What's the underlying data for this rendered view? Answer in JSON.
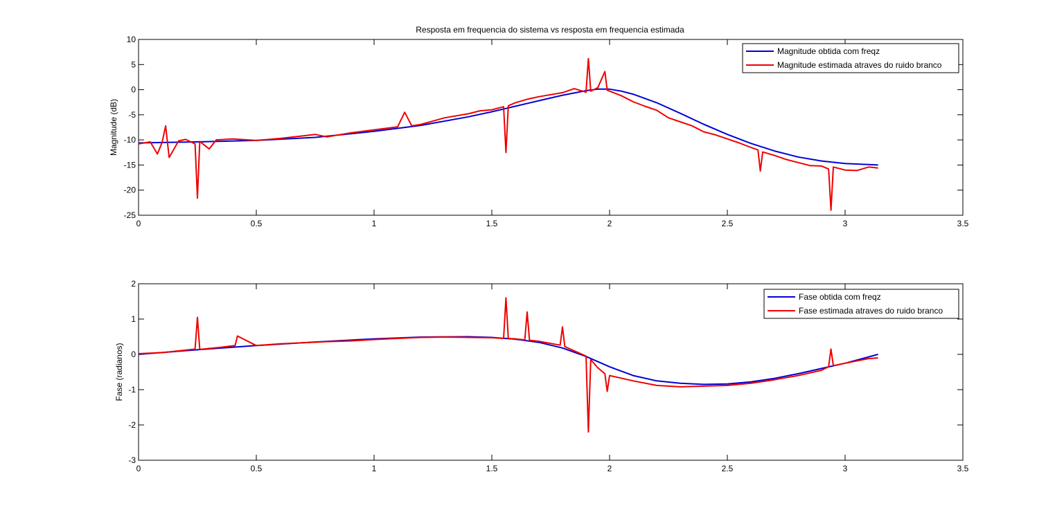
{
  "figure": {
    "title": "Resposta em frequencia do sistema vs resposta em frequencia estimada"
  },
  "chart_data": [
    {
      "type": "line",
      "ylabel": "Magnitude (dB)",
      "xlabel": "",
      "xlim": [
        0,
        3.5
      ],
      "ylim": [
        -25,
        10
      ],
      "xticks": [
        0,
        0.5,
        1,
        1.5,
        2,
        2.5,
        3,
        3.5
      ],
      "yticks": [
        -25,
        -20,
        -15,
        -10,
        -5,
        0,
        5,
        10
      ],
      "xtick_labels": [
        "0",
        "0.5",
        "1",
        "1.5",
        "2",
        "2.5",
        "3",
        "3.5"
      ],
      "ytick_labels": [
        "-25",
        "-20",
        "-15",
        "-10",
        "-5",
        "0",
        "5",
        "10"
      ],
      "legend_position": "top-right",
      "series": [
        {
          "name": "Magnitude obtida com freqz",
          "color": "#0000d6",
          "x": [
            0,
            0.25,
            0.5,
            0.75,
            1.0,
            1.2,
            1.4,
            1.5,
            1.6,
            1.7,
            1.8,
            1.9,
            1.95,
            2.0,
            2.05,
            2.1,
            2.2,
            2.3,
            2.4,
            2.5,
            2.6,
            2.7,
            2.8,
            2.9,
            3.0,
            3.14
          ],
          "values": [
            -10.6,
            -10.4,
            -10.1,
            -9.5,
            -8.3,
            -7.1,
            -5.4,
            -4.4,
            -3.3,
            -2.2,
            -1.1,
            -0.2,
            0.1,
            0.1,
            -0.3,
            -0.9,
            -2.6,
            -4.7,
            -6.9,
            -8.9,
            -10.7,
            -12.2,
            -13.4,
            -14.2,
            -14.7,
            -15.0
          ]
        },
        {
          "name": "Magnitude estimada atraves do ruido branco",
          "color": "#ee0000",
          "x": [
            0,
            0.05,
            0.08,
            0.1,
            0.115,
            0.13,
            0.17,
            0.2,
            0.24,
            0.25,
            0.26,
            0.3,
            0.33,
            0.4,
            0.5,
            0.6,
            0.7,
            0.75,
            0.8,
            0.9,
            1.0,
            1.1,
            1.13,
            1.16,
            1.2,
            1.3,
            1.4,
            1.45,
            1.5,
            1.55,
            1.56,
            1.57,
            1.6,
            1.65,
            1.7,
            1.8,
            1.85,
            1.9,
            1.91,
            1.92,
            1.95,
            1.98,
            1.99,
            2.0,
            2.05,
            2.1,
            2.15,
            2.2,
            2.25,
            2.3,
            2.35,
            2.4,
            2.45,
            2.5,
            2.55,
            2.6,
            2.63,
            2.64,
            2.65,
            2.7,
            2.75,
            2.8,
            2.85,
            2.9,
            2.93,
            2.94,
            2.95,
            3.0,
            3.05,
            3.1,
            3.14
          ],
          "values": [
            -10.8,
            -10.4,
            -12.8,
            -10.5,
            -7.2,
            -13.5,
            -10.2,
            -9.9,
            -10.8,
            -21.6,
            -10.3,
            -11.8,
            -10.0,
            -9.8,
            -10.1,
            -9.7,
            -9.2,
            -8.9,
            -9.4,
            -8.6,
            -8.0,
            -7.4,
            -4.5,
            -7.2,
            -6.9,
            -5.6,
            -4.8,
            -4.2,
            -4.0,
            -3.4,
            -12.5,
            -3.2,
            -2.6,
            -1.9,
            -1.4,
            -0.6,
            0.2,
            -0.5,
            6.2,
            -0.3,
            0.4,
            3.6,
            -0.1,
            -0.3,
            -1.2,
            -2.4,
            -3.3,
            -4.1,
            -5.6,
            -6.4,
            -7.2,
            -8.4,
            -9.0,
            -9.8,
            -10.6,
            -11.5,
            -12.0,
            -16.2,
            -12.4,
            -13.1,
            -13.9,
            -14.5,
            -15.1,
            -15.2,
            -15.8,
            -24.0,
            -15.4,
            -16.0,
            -16.1,
            -15.4,
            -15.6
          ]
        }
      ]
    },
    {
      "type": "line",
      "ylabel": "Fase (radianos)",
      "xlabel": "",
      "xlim": [
        0,
        3.5
      ],
      "ylim": [
        -3,
        2
      ],
      "xticks": [
        0,
        0.5,
        1,
        1.5,
        2,
        2.5,
        3,
        3.5
      ],
      "yticks": [
        -3,
        -2,
        -1,
        0,
        1,
        2
      ],
      "xtick_labels": [
        "0",
        "0.5",
        "1",
        "1.5",
        "2",
        "2.5",
        "3",
        "3.5"
      ],
      "ytick_labels": [
        "-3",
        "-2",
        "-1",
        "0",
        "1",
        "2"
      ],
      "legend_position": "top-right",
      "series": [
        {
          "name": "Fase obtida com freqz",
          "color": "#0000d6",
          "x": [
            0,
            0.25,
            0.5,
            0.75,
            1.0,
            1.2,
            1.4,
            1.5,
            1.6,
            1.7,
            1.8,
            1.9,
            2.0,
            2.1,
            2.2,
            2.3,
            2.4,
            2.5,
            2.6,
            2.7,
            2.8,
            2.9,
            3.0,
            3.14
          ],
          "values": [
            0.0,
            0.13,
            0.25,
            0.35,
            0.44,
            0.49,
            0.5,
            0.48,
            0.43,
            0.34,
            0.18,
            -0.06,
            -0.35,
            -0.6,
            -0.75,
            -0.82,
            -0.85,
            -0.84,
            -0.78,
            -0.68,
            -0.55,
            -0.4,
            -0.25,
            0.0
          ]
        },
        {
          "name": "Fase estimada atraves do ruido branco",
          "color": "#ee0000",
          "x": [
            0,
            0.1,
            0.2,
            0.24,
            0.25,
            0.26,
            0.35,
            0.41,
            0.42,
            0.5,
            0.6,
            0.7,
            0.8,
            0.9,
            1.0,
            1.1,
            1.2,
            1.3,
            1.4,
            1.5,
            1.55,
            1.56,
            1.57,
            1.6,
            1.64,
            1.65,
            1.66,
            1.7,
            1.79,
            1.8,
            1.81,
            1.85,
            1.9,
            1.91,
            1.92,
            1.95,
            1.98,
            1.99,
            2.0,
            2.1,
            2.2,
            2.3,
            2.4,
            2.5,
            2.6,
            2.7,
            2.8,
            2.9,
            2.93,
            2.94,
            2.95,
            3.0,
            3.1,
            3.14
          ],
          "values": [
            0.02,
            0.05,
            0.12,
            0.15,
            1.05,
            0.14,
            0.2,
            0.25,
            0.52,
            0.25,
            0.3,
            0.33,
            0.36,
            0.38,
            0.42,
            0.45,
            0.48,
            0.49,
            0.48,
            0.47,
            0.45,
            1.6,
            0.45,
            0.44,
            0.41,
            1.2,
            0.4,
            0.37,
            0.26,
            0.78,
            0.22,
            0.1,
            -0.05,
            -2.2,
            -0.15,
            -0.38,
            -0.55,
            -1.05,
            -0.6,
            -0.75,
            -0.88,
            -0.92,
            -0.9,
            -0.88,
            -0.82,
            -0.72,
            -0.6,
            -0.45,
            -0.35,
            0.15,
            -0.32,
            -0.25,
            -0.12,
            -0.1
          ]
        }
      ]
    }
  ]
}
